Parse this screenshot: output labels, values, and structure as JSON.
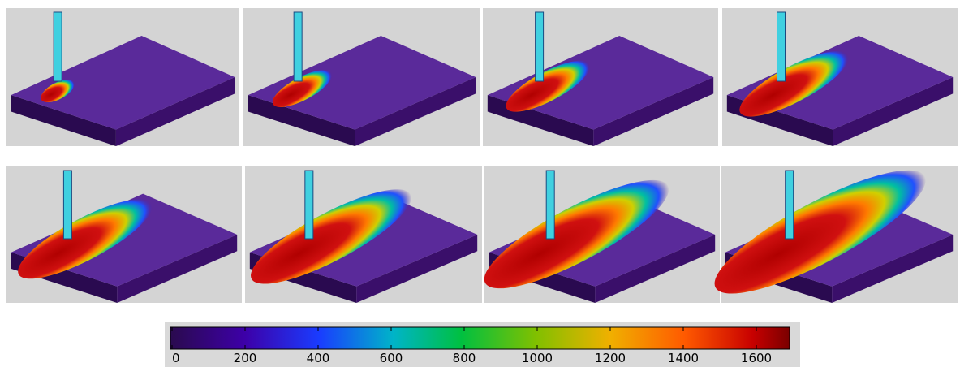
{
  "colorbar": {
    "range": [
      0,
      1690
    ],
    "ticks": [
      0,
      200,
      400,
      600,
      800,
      1000,
      1200,
      1400,
      1600
    ]
  }
}
